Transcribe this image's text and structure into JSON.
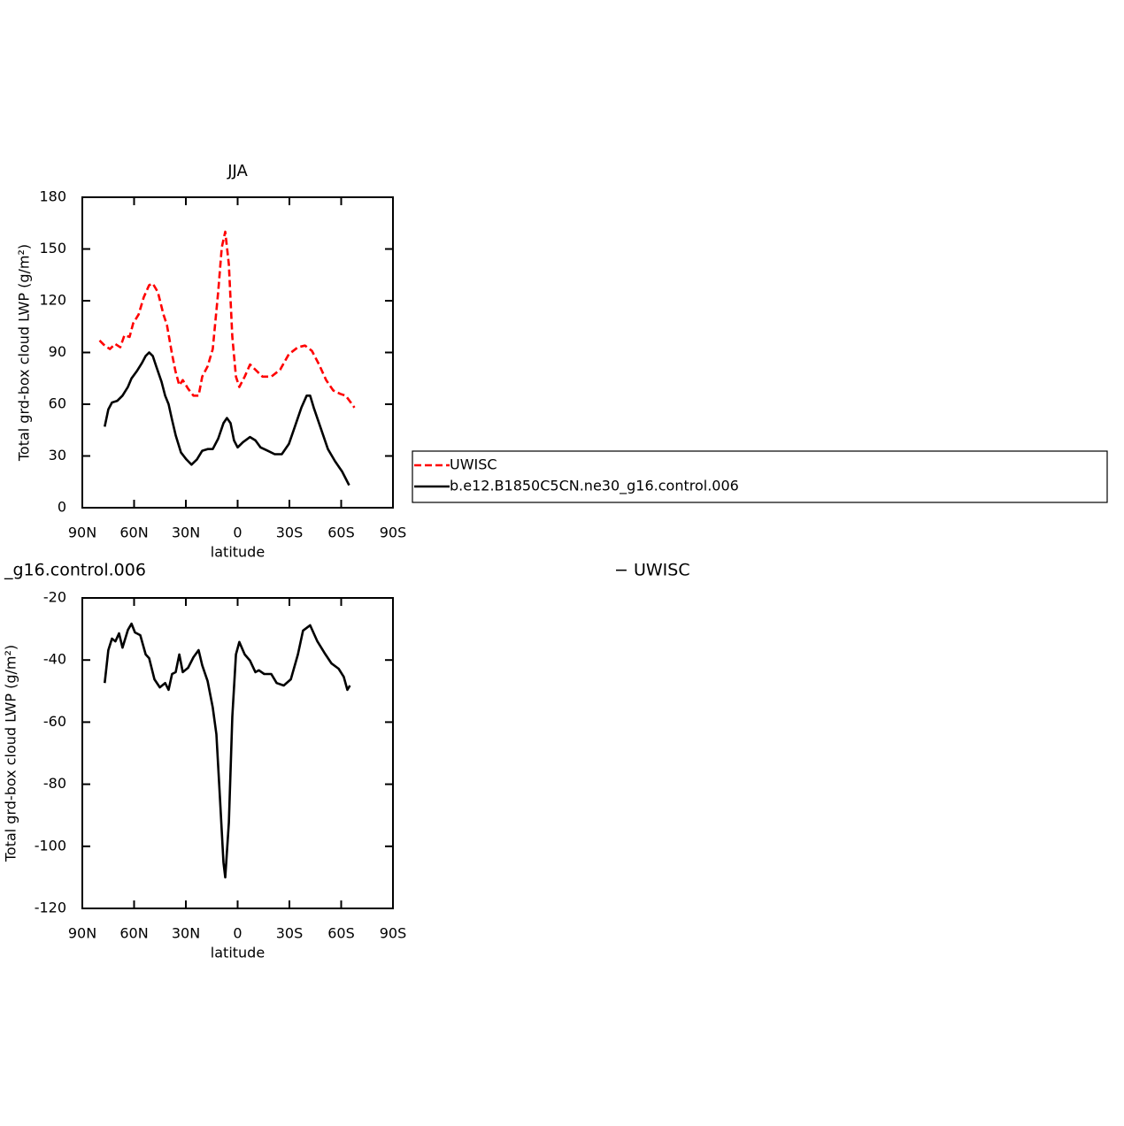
{
  "chart_data": [
    {
      "type": "line",
      "title": "JJA",
      "xlabel": "latitude",
      "ylabel": "Total grd-box cloud LWP (g/m²)",
      "xlim": [
        90,
        -90
      ],
      "xticks": [
        {
          "value": 90,
          "label": "90N"
        },
        {
          "value": 60,
          "label": "60N"
        },
        {
          "value": 30,
          "label": "30N"
        },
        0,
        {
          "value": -30,
          "label": "30S"
        },
        {
          "value": -60,
          "label": "60S"
        },
        {
          "value": -90,
          "label": "90S"
        }
      ],
      "ylim": [
        0,
        180
      ],
      "yticks": [
        0,
        30,
        60,
        90,
        120,
        150,
        180
      ],
      "legend": "right",
      "series": [
        {
          "name": "UWISC",
          "color": "#ff0000",
          "line_style": "dashed",
          "x": [
            80,
            77,
            74,
            71,
            68,
            65.6,
            62.6,
            60.5,
            57.4,
            54.4,
            51.3,
            49.2,
            46.2,
            43,
            41,
            38,
            36,
            33.8,
            31.8,
            28.7,
            25.6,
            22.6,
            20.5,
            17.4,
            14.4,
            11.3,
            9.2,
            7.2,
            5.1,
            3.1,
            1,
            -1,
            -4.1,
            -7.2,
            -10.3,
            -14.4,
            -19.5,
            -24.6,
            -29.7,
            -34.9,
            -39,
            -43,
            -47.2,
            -51.3,
            -55.4,
            -59.5,
            -62.6,
            -65.6,
            -67.7
          ],
          "values": [
            97,
            94,
            92,
            95,
            93,
            100,
            99,
            107,
            112,
            122,
            129,
            130,
            125,
            112,
            106,
            89,
            79,
            71,
            74,
            69,
            65,
            65,
            76,
            82,
            92,
            125,
            151,
            160,
            141,
            99,
            76,
            70,
            76,
            83,
            80,
            76,
            76,
            80,
            89,
            93,
            94,
            91,
            83,
            74,
            68,
            66,
            65,
            61,
            58
          ]
        },
        {
          "name": "b.e12.B1850C5CN.ne30_g16.control.006",
          "color": "#000000",
          "line_style": "solid",
          "x": [
            77,
            74.9,
            72.8,
            69.7,
            66.7,
            63.6,
            61.5,
            58.5,
            55.4,
            53.3,
            51.3,
            49.2,
            47.2,
            44.1,
            42,
            40,
            38,
            35.9,
            32.8,
            29.7,
            26.7,
            23.6,
            20.5,
            17.4,
            14.4,
            11.3,
            8.2,
            6.2,
            4.1,
            2.1,
            0,
            -3.1,
            -7.2,
            -10.3,
            -13.3,
            -17.4,
            -21.5,
            -25.6,
            -29.7,
            -32.8,
            -36.9,
            -40,
            -42,
            -44.1,
            -48.2,
            -52.3,
            -56.4,
            -60.5,
            -64.6
          ],
          "values": [
            47,
            57,
            61,
            62,
            65,
            70,
            75,
            79,
            84,
            88,
            90,
            88,
            82,
            73,
            65,
            60,
            51,
            42,
            32,
            28,
            25,
            28,
            33,
            34,
            34,
            40,
            49,
            52,
            49,
            39,
            35,
            38,
            41,
            39,
            35,
            33,
            31,
            31,
            37,
            46,
            58,
            65,
            65,
            58,
            46,
            34,
            27,
            21,
            13
          ]
        }
      ]
    },
    {
      "type": "line",
      "title_left": "_g16.control.006",
      "title_right": "− UWISC",
      "xlabel": "latitude",
      "ylabel": "Total grd-box cloud LWP (g/m²)",
      "xlim": [
        90,
        -90
      ],
      "xticks": [
        {
          "value": 90,
          "label": "90N"
        },
        {
          "value": 60,
          "label": "60N"
        },
        {
          "value": 30,
          "label": "30N"
        },
        0,
        {
          "value": -30,
          "label": "30S"
        },
        {
          "value": -60,
          "label": "60S"
        },
        {
          "value": -90,
          "label": "90S"
        }
      ],
      "ylim": [
        -120,
        -20
      ],
      "yticks": [
        -120,
        -100,
        -80,
        -60,
        -40,
        -20
      ],
      "series": [
        {
          "color": "#000000",
          "line_style": "solid",
          "x": [
            77,
            74.9,
            72.8,
            70.8,
            68.7,
            66.7,
            63.6,
            61.5,
            59.5,
            56.4,
            53.3,
            51.3,
            48.2,
            45.1,
            42,
            40,
            38,
            35.9,
            33.8,
            31.8,
            28.7,
            25.6,
            22.6,
            20.5,
            17.4,
            14.4,
            12.3,
            10.3,
            8.2,
            7.2,
            5.1,
            3.1,
            1,
            -1,
            -4.1,
            -7.2,
            -10.3,
            -12.3,
            -15.4,
            -19.5,
            -22.6,
            -26.7,
            -30.8,
            -34.9,
            -37.9,
            -42,
            -46.2,
            -50.3,
            -54.4,
            -58.5,
            -61.5,
            -63.6,
            -65.1
          ],
          "values": [
            -47.4,
            -36.8,
            -33.1,
            -34,
            -31.4,
            -36,
            -30.3,
            -28.3,
            -31.1,
            -32,
            -38.2,
            -39.4,
            -46.2,
            -48.8,
            -47.4,
            -49.6,
            -44.5,
            -43.9,
            -38.2,
            -43.9,
            -42.5,
            -39.1,
            -36.8,
            -41.7,
            -46.8,
            -55.3,
            -63.9,
            -83.8,
            -105.2,
            -110,
            -92.3,
            -58.2,
            -38.2,
            -34.2,
            -38.2,
            -40.2,
            -43.9,
            -43.3,
            -44.5,
            -44.5,
            -47.4,
            -48.2,
            -46.2,
            -38.2,
            -30.5,
            -28.8,
            -34,
            -37.7,
            -41.1,
            -42.8,
            -45.4,
            -49.6,
            -48.2
          ]
        }
      ]
    }
  ]
}
